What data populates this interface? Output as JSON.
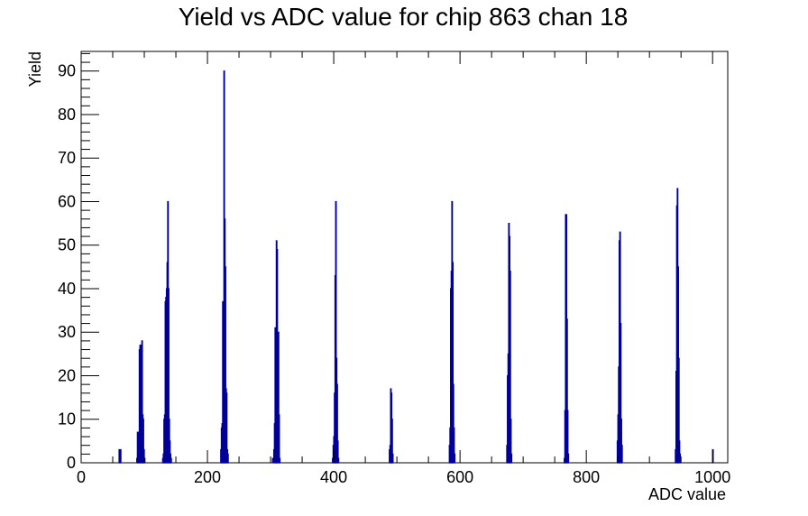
{
  "chart_data": {
    "type": "bar",
    "title": "Yield vs ADC value for chip 863 chan 18",
    "xlabel": "ADC value",
    "ylabel": "Yield",
    "xlim": [
      0,
      1024
    ],
    "ylim": [
      0,
      94.5
    ],
    "x_ticks": [
      0,
      200,
      400,
      600,
      800,
      1000
    ],
    "y_ticks": [
      0,
      10,
      20,
      30,
      40,
      50,
      60,
      70,
      80,
      90
    ],
    "bin_width": 1,
    "grid": false,
    "legend": "none",
    "series_color": "#000099",
    "bins": [
      [
        60,
        3
      ],
      [
        61,
        3
      ],
      [
        62,
        3
      ],
      [
        88,
        1
      ],
      [
        89,
        7
      ],
      [
        90,
        7
      ],
      [
        91,
        2
      ],
      [
        92,
        26
      ],
      [
        93,
        27
      ],
      [
        94,
        27
      ],
      [
        95,
        26
      ],
      [
        96,
        28
      ],
      [
        97,
        11
      ],
      [
        98,
        10
      ],
      [
        99,
        3
      ],
      [
        100,
        1
      ],
      [
        129,
        1
      ],
      [
        130,
        2
      ],
      [
        131,
        10
      ],
      [
        132,
        11
      ],
      [
        133,
        37
      ],
      [
        134,
        38
      ],
      [
        135,
        40
      ],
      [
        136,
        46
      ],
      [
        137,
        60
      ],
      [
        138,
        40
      ],
      [
        139,
        10
      ],
      [
        140,
        5
      ],
      [
        141,
        2
      ],
      [
        142,
        1
      ],
      [
        221,
        3
      ],
      [
        222,
        8
      ],
      [
        223,
        9
      ],
      [
        224,
        37
      ],
      [
        225,
        27
      ],
      [
        226,
        90
      ],
      [
        227,
        56
      ],
      [
        228,
        45
      ],
      [
        229,
        17
      ],
      [
        230,
        16
      ],
      [
        231,
        3
      ],
      [
        232,
        2
      ],
      [
        303,
        1
      ],
      [
        305,
        3
      ],
      [
        306,
        9
      ],
      [
        307,
        31
      ],
      [
        308,
        24
      ],
      [
        309,
        51
      ],
      [
        310,
        49
      ],
      [
        311,
        21
      ],
      [
        312,
        30
      ],
      [
        313,
        11
      ],
      [
        314,
        1
      ],
      [
        398,
        1
      ],
      [
        399,
        4
      ],
      [
        400,
        6
      ],
      [
        401,
        16
      ],
      [
        402,
        43
      ],
      [
        403,
        60
      ],
      [
        404,
        24
      ],
      [
        405,
        18
      ],
      [
        406,
        5
      ],
      [
        407,
        1
      ],
      [
        488,
        3
      ],
      [
        489,
        4
      ],
      [
        490,
        17
      ],
      [
        491,
        16
      ],
      [
        492,
        10
      ],
      [
        493,
        2
      ],
      [
        583,
        4
      ],
      [
        584,
        8
      ],
      [
        585,
        40
      ],
      [
        586,
        44
      ],
      [
        587,
        60
      ],
      [
        588,
        46
      ],
      [
        589,
        18
      ],
      [
        590,
        8
      ],
      [
        591,
        2
      ],
      [
        674,
        4
      ],
      [
        675,
        20
      ],
      [
        676,
        25
      ],
      [
        677,
        55
      ],
      [
        678,
        52
      ],
      [
        679,
        44
      ],
      [
        680,
        10
      ],
      [
        681,
        2
      ],
      [
        765,
        1
      ],
      [
        766,
        12
      ],
      [
        767,
        57
      ],
      [
        768,
        57
      ],
      [
        769,
        33
      ],
      [
        770,
        12
      ],
      [
        771,
        2
      ],
      [
        849,
        5
      ],
      [
        850,
        11
      ],
      [
        851,
        22
      ],
      [
        852,
        51
      ],
      [
        853,
        53
      ],
      [
        854,
        32
      ],
      [
        855,
        10
      ],
      [
        856,
        4
      ],
      [
        941,
        3
      ],
      [
        942,
        21
      ],
      [
        943,
        59
      ],
      [
        944,
        63
      ],
      [
        945,
        45
      ],
      [
        946,
        24
      ],
      [
        947,
        5
      ],
      [
        948,
        2
      ],
      [
        1000,
        3
      ]
    ]
  }
}
